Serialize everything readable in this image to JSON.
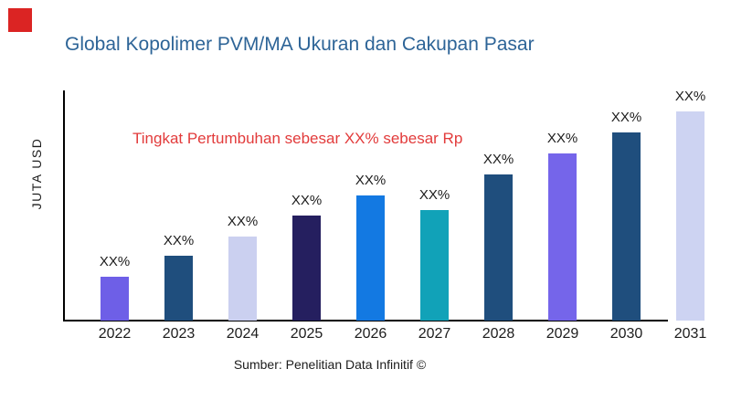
{
  "marker": {
    "color": "#DB2423"
  },
  "chart_data": {
    "type": "bar",
    "title": "Global Kopolimer PVM/MA Ukuran dan Cakupan Pasar",
    "title_color": "#2D6497",
    "xlabel": "",
    "ylabel": "JUTA USD",
    "categories": [
      "2022",
      "2023",
      "2024",
      "2025",
      "2026",
      "2027",
      "2028",
      "2029",
      "2030",
      "2031"
    ],
    "values": [
      21,
      31,
      40,
      50,
      60,
      53,
      70,
      80,
      90,
      100
    ],
    "value_scale": "relative index (no numeric y-axis ticks shown; 2031 = 100)",
    "bar_labels": [
      "XX%",
      "XX%",
      "XX%",
      "XX%",
      "XX%",
      "XX%",
      "XX%",
      "XX%",
      "XX%",
      "XX%"
    ],
    "bar_colors": [
      "#6E5FE7",
      "#1F4E7D",
      "#CBD0F0",
      "#251F5F",
      "#1379E2",
      "#11A2B8",
      "#1F4E7D",
      "#7565EA",
      "#1F4E7D",
      "#CDD3F2"
    ],
    "annotation": "Tingkat Pertumbuhan sebesar XX% sebesar Rp",
    "annotation_color": "#E23B3B",
    "source": "Sumber: Penelitian Data Infinitif ©",
    "grid": false,
    "legend": false,
    "ylim": [
      0,
      110
    ]
  }
}
